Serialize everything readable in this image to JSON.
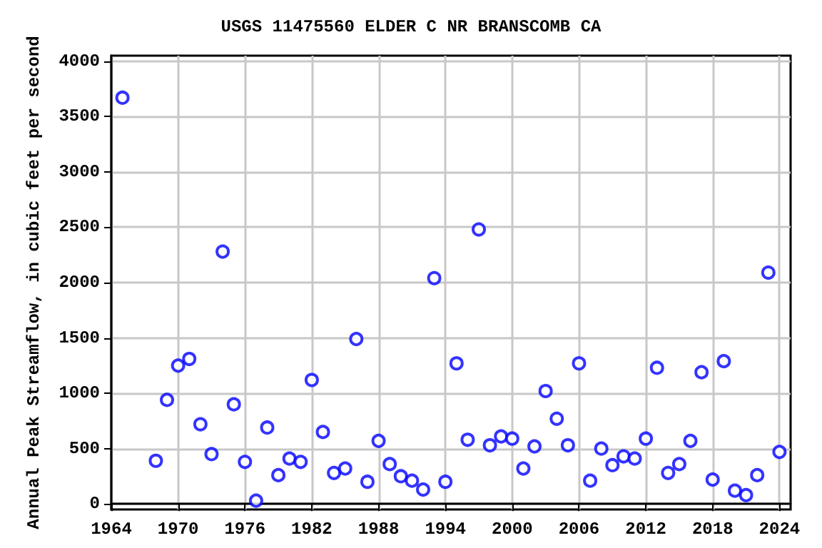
{
  "chart_data": {
    "type": "scatter",
    "title": "USGS 11475560 ELDER C NR BRANSCOMB CA",
    "ylabel": "Annual Peak Streamflow, in cubic feet per second",
    "x": [
      1965,
      1968,
      1969,
      1970,
      1971,
      1972,
      1973,
      1974,
      1975,
      1976,
      1977,
      1978,
      1979,
      1980,
      1981,
      1982,
      1983,
      1984,
      1985,
      1986,
      1987,
      1988,
      1989,
      1990,
      1991,
      1992,
      1993,
      1994,
      1995,
      1996,
      1997,
      1998,
      1999,
      2000,
      2001,
      2002,
      2003,
      2004,
      2005,
      2006,
      2007,
      2008,
      2009,
      2010,
      2011,
      2012,
      2013,
      2014,
      2015,
      2016,
      2017,
      2018,
      2019,
      2020,
      2021,
      2022,
      2023,
      2024
    ],
    "values": [
      3670,
      390,
      940,
      1250,
      1310,
      720,
      450,
      2280,
      900,
      380,
      30,
      690,
      260,
      410,
      380,
      1120,
      650,
      280,
      320,
      1490,
      200,
      570,
      360,
      250,
      210,
      130,
      2040,
      200,
      1270,
      580,
      2480,
      530,
      610,
      590,
      320,
      520,
      1020,
      770,
      530,
      1270,
      210,
      500,
      350,
      430,
      410,
      590,
      1230,
      280,
      360,
      570,
      1190,
      220,
      1290,
      120,
      80,
      260,
      2090,
      470
    ],
    "color": "#0000ff",
    "marker": "circle",
    "grid": true,
    "xlim": [
      1964,
      2025
    ],
    "xticks": [
      1964,
      1970,
      1976,
      1982,
      1988,
      1994,
      2000,
      2006,
      2012,
      2018,
      2024
    ],
    "ylim": [
      -50,
      4050
    ],
    "yticks": [
      0,
      500,
      1000,
      1500,
      2000,
      2500,
      3000,
      3500,
      4000
    ]
  }
}
